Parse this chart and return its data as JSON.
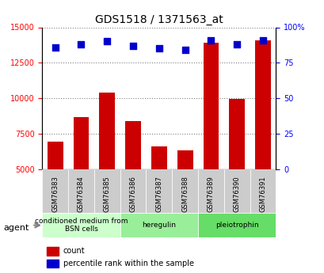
{
  "title": "GDS1518 / 1371563_at",
  "samples": [
    "GSM76383",
    "GSM76384",
    "GSM76385",
    "GSM76386",
    "GSM76387",
    "GSM76388",
    "GSM76389",
    "GSM76390",
    "GSM76391"
  ],
  "counts": [
    6950,
    8650,
    10400,
    8400,
    6600,
    6350,
    13900,
    9950,
    14100
  ],
  "percentiles": [
    86,
    88,
    90,
    87,
    85,
    84,
    91,
    88,
    91
  ],
  "percentile_scale": 100,
  "ylim_left": [
    5000,
    15000
  ],
  "ylim_right": [
    0,
    100
  ],
  "yticks_left": [
    5000,
    7500,
    10000,
    12500,
    15000
  ],
  "yticks_right": [
    0,
    25,
    50,
    75,
    100
  ],
  "bar_color": "#cc0000",
  "dot_color": "#0000cc",
  "bar_width": 0.6,
  "groups": [
    {
      "label": "conditioned medium from\nBSN cells",
      "start": 0,
      "end": 3,
      "color": "#ccffcc"
    },
    {
      "label": "heregulin",
      "start": 3,
      "end": 6,
      "color": "#99ee99"
    },
    {
      "label": "pleiotrophin",
      "start": 6,
      "end": 9,
      "color": "#66dd66"
    }
  ],
  "agent_label": "agent",
  "legend_count_label": "count",
  "legend_percentile_label": "percentile rank within the sample",
  "tick_bg_color": "#cccccc",
  "plot_bg_color": "#ffffff",
  "fig_bg_color": "#ffffff"
}
